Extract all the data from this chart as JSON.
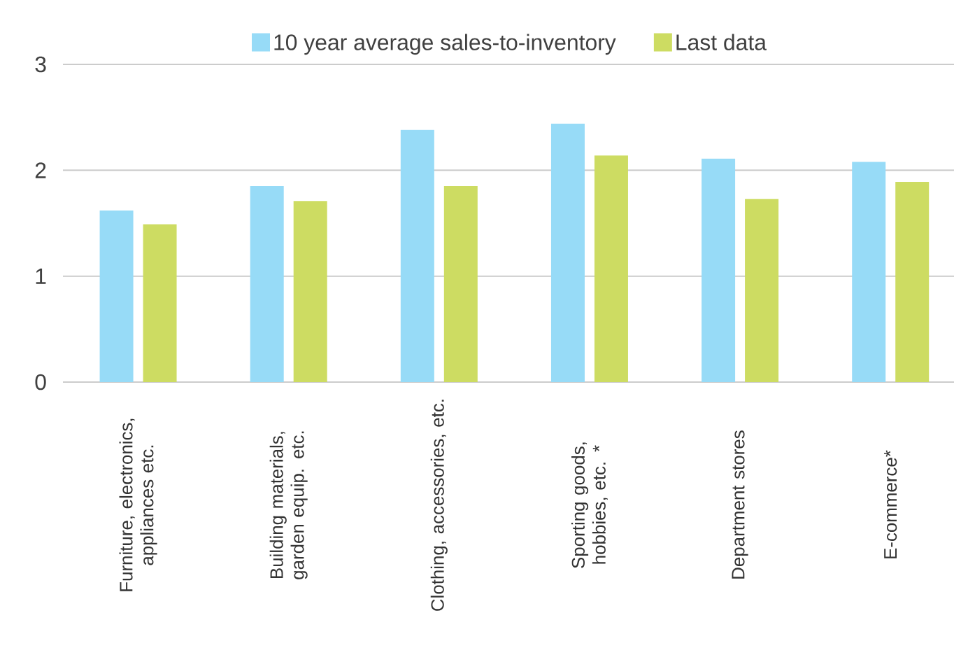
{
  "chart_data": {
    "type": "bar",
    "categories": [
      "Furniture, electronics, appliances etc.",
      "Building materials, garden equip. etc.",
      "Clothing, accessories, etc.",
      "Sporting goods, hobbies, etc. *",
      "Department stores",
      "E-commerce*"
    ],
    "series": [
      {
        "name": "10 year average sales-to-inventory",
        "color": "#97dbf7",
        "values": [
          1.62,
          1.85,
          2.38,
          2.44,
          2.11,
          2.08
        ]
      },
      {
        "name": "Last data",
        "color": "#cddc62",
        "values": [
          1.49,
          1.71,
          1.85,
          2.14,
          1.73,
          1.89
        ]
      }
    ],
    "ylim": [
      0,
      3
    ],
    "yticks": [
      0,
      1,
      2,
      3
    ],
    "grid": "y",
    "legend": "top"
  }
}
